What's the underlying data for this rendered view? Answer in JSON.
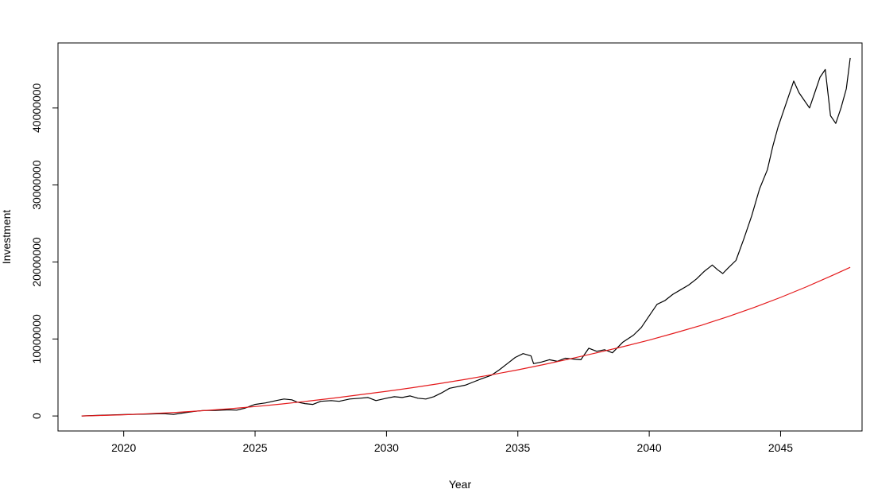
{
  "chart_data": {
    "type": "line",
    "title": "",
    "xlabel": "Year",
    "ylabel": "Investment",
    "xlim": [
      2017.5,
      2048.1
    ],
    "ylim": [
      -1950000,
      48450000
    ],
    "x_ticks": [
      2020,
      2025,
      2030,
      2035,
      2040,
      2045
    ],
    "x_tick_labels": [
      "2020",
      "2025",
      "2030",
      "2035",
      "2040",
      "2045"
    ],
    "y_ticks": [
      0,
      10000000,
      20000000,
      30000000,
      40000000
    ],
    "y_tick_labels": [
      "0",
      "10000000",
      "20000000",
      "30000000",
      "40000000"
    ],
    "grid": false,
    "legend": "none",
    "series": [
      {
        "color": "#000000",
        "points": [
          [
            2018.4,
            0
          ],
          [
            2019.0,
            80000
          ],
          [
            2019.5,
            130000
          ],
          [
            2020.0,
            180000
          ],
          [
            2020.5,
            220000
          ],
          [
            2021.0,
            260000
          ],
          [
            2021.5,
            300000
          ],
          [
            2021.9,
            200000
          ],
          [
            2022.3,
            420000
          ],
          [
            2022.7,
            600000
          ],
          [
            2023.0,
            700000
          ],
          [
            2023.5,
            720000
          ],
          [
            2024.0,
            800000
          ],
          [
            2024.3,
            760000
          ],
          [
            2024.6,
            1000000
          ],
          [
            2025.0,
            1500000
          ],
          [
            2025.4,
            1700000
          ],
          [
            2025.8,
            2000000
          ],
          [
            2026.1,
            2200000
          ],
          [
            2026.4,
            2100000
          ],
          [
            2026.6,
            1800000
          ],
          [
            2026.9,
            1600000
          ],
          [
            2027.2,
            1500000
          ],
          [
            2027.5,
            1900000
          ],
          [
            2027.9,
            2000000
          ],
          [
            2028.2,
            1900000
          ],
          [
            2028.6,
            2200000
          ],
          [
            2029.0,
            2300000
          ],
          [
            2029.3,
            2400000
          ],
          [
            2029.6,
            2000000
          ],
          [
            2030.0,
            2300000
          ],
          [
            2030.3,
            2500000
          ],
          [
            2030.6,
            2400000
          ],
          [
            2030.9,
            2600000
          ],
          [
            2031.2,
            2300000
          ],
          [
            2031.5,
            2200000
          ],
          [
            2031.8,
            2500000
          ],
          [
            2032.1,
            3000000
          ],
          [
            2032.4,
            3600000
          ],
          [
            2032.7,
            3800000
          ],
          [
            2033.0,
            4000000
          ],
          [
            2033.3,
            4400000
          ],
          [
            2033.6,
            4800000
          ],
          [
            2034.0,
            5300000
          ],
          [
            2034.3,
            6000000
          ],
          [
            2034.6,
            6800000
          ],
          [
            2034.9,
            7600000
          ],
          [
            2035.2,
            8100000
          ],
          [
            2035.5,
            7800000
          ],
          [
            2035.6,
            6800000
          ],
          [
            2035.9,
            7000000
          ],
          [
            2036.2,
            7300000
          ],
          [
            2036.5,
            7100000
          ],
          [
            2036.8,
            7500000
          ],
          [
            2037.1,
            7400000
          ],
          [
            2037.4,
            7300000
          ],
          [
            2037.7,
            8800000
          ],
          [
            2038.0,
            8400000
          ],
          [
            2038.3,
            8600000
          ],
          [
            2038.6,
            8200000
          ],
          [
            2039.0,
            9600000
          ],
          [
            2039.4,
            10500000
          ],
          [
            2039.7,
            11500000
          ],
          [
            2040.0,
            13000000
          ],
          [
            2040.3,
            14500000
          ],
          [
            2040.6,
            15000000
          ],
          [
            2040.9,
            15800000
          ],
          [
            2041.2,
            16400000
          ],
          [
            2041.5,
            17000000
          ],
          [
            2041.8,
            17800000
          ],
          [
            2042.1,
            18800000
          ],
          [
            2042.4,
            19600000
          ],
          [
            2042.6,
            19000000
          ],
          [
            2042.8,
            18500000
          ],
          [
            2043.0,
            19200000
          ],
          [
            2043.3,
            20200000
          ],
          [
            2043.6,
            23000000
          ],
          [
            2043.9,
            26000000
          ],
          [
            2044.2,
            29500000
          ],
          [
            2044.5,
            32000000
          ],
          [
            2044.7,
            35000000
          ],
          [
            2044.9,
            37500000
          ],
          [
            2045.1,
            39500000
          ],
          [
            2045.3,
            41500000
          ],
          [
            2045.5,
            43500000
          ],
          [
            2045.7,
            42000000
          ],
          [
            2045.9,
            41000000
          ],
          [
            2046.1,
            40000000
          ],
          [
            2046.3,
            42000000
          ],
          [
            2046.5,
            44000000
          ],
          [
            2046.7,
            45000000
          ],
          [
            2046.9,
            39000000
          ],
          [
            2047.1,
            38000000
          ],
          [
            2047.3,
            40000000
          ],
          [
            2047.5,
            42500000
          ],
          [
            2047.65,
            46500000
          ]
        ]
      },
      {
        "color": "#e41a1c",
        "points": [
          [
            2018.4,
            0
          ],
          [
            2019.0,
            50000
          ],
          [
            2020.0,
            160000
          ],
          [
            2021.0,
            300000
          ],
          [
            2022.0,
            470000
          ],
          [
            2023.0,
            680000
          ],
          [
            2024.0,
            930000
          ],
          [
            2025.0,
            1220000
          ],
          [
            2026.0,
            1550000
          ],
          [
            2027.0,
            1920000
          ],
          [
            2028.0,
            2330000
          ],
          [
            2029.0,
            2760000
          ],
          [
            2030.0,
            3200000
          ],
          [
            2031.0,
            3680000
          ],
          [
            2032.0,
            4200000
          ],
          [
            2033.0,
            4750000
          ],
          [
            2034.0,
            5350000
          ],
          [
            2035.0,
            5990000
          ],
          [
            2036.0,
            6680000
          ],
          [
            2037.0,
            7430000
          ],
          [
            2038.0,
            8200000
          ],
          [
            2039.0,
            9000000
          ],
          [
            2040.0,
            9850000
          ],
          [
            2041.0,
            10800000
          ],
          [
            2042.0,
            11800000
          ],
          [
            2043.0,
            12900000
          ],
          [
            2044.0,
            14100000
          ],
          [
            2045.0,
            15400000
          ],
          [
            2046.0,
            16800000
          ],
          [
            2047.0,
            18300000
          ],
          [
            2047.65,
            19300000
          ]
        ]
      }
    ]
  }
}
